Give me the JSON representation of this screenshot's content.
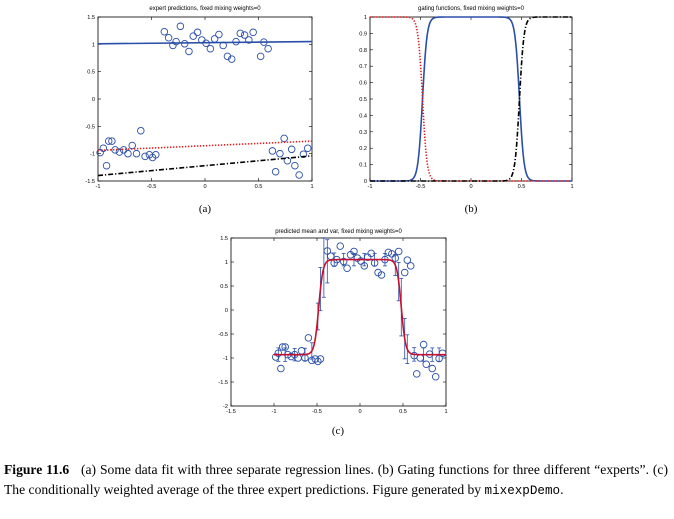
{
  "chart_data": [
    {
      "id": "a",
      "type": "scatter",
      "title": "expert predictions, fixed mixing weights=0",
      "subfigure_label": "(a)",
      "xlim": [
        -1,
        1
      ],
      "ylim": [
        -1.5,
        1.5
      ],
      "xticks": [
        -1,
        -0.5,
        0,
        0.5,
        1
      ],
      "xtick_labels": [
        "-1",
        "-0.5",
        "0",
        "0.5",
        "1"
      ],
      "yticks": [
        -1.5,
        -1,
        -0.5,
        0,
        0.5,
        1,
        1.5
      ],
      "ytick_labels": [
        "-1.5",
        "-1",
        "-0.5",
        "0",
        "0.5",
        "1",
        "1.5"
      ],
      "points": {
        "x": [
          -0.98,
          -0.95,
          -0.92,
          -0.9,
          -0.87,
          -0.84,
          -0.8,
          -0.76,
          -0.72,
          -0.68,
          -0.64,
          -0.6,
          -0.56,
          -0.52,
          -0.49,
          -0.46,
          -0.38,
          -0.34,
          -0.3,
          -0.27,
          -0.23,
          -0.19,
          -0.15,
          -0.11,
          -0.07,
          -0.03,
          0.01,
          0.05,
          0.09,
          0.13,
          0.17,
          0.21,
          0.25,
          0.29,
          0.33,
          0.37,
          0.41,
          0.45,
          0.52,
          0.55,
          0.59,
          0.63,
          0.66,
          0.7,
          0.74,
          0.77,
          0.81,
          0.84,
          0.88,
          0.92,
          0.96
        ],
        "y": [
          -0.98,
          -0.9,
          -1.22,
          -0.77,
          -0.77,
          -0.93,
          -0.97,
          -0.93,
          -1,
          -0.85,
          -1,
          -0.58,
          -1.05,
          -1.02,
          -1.07,
          -1.02,
          1.23,
          1.12,
          0.98,
          1.05,
          1.33,
          1.01,
          0.87,
          1.15,
          1.22,
          1.08,
          1.02,
          0.92,
          1.1,
          1.18,
          0.98,
          0.78,
          0.73,
          1.05,
          1.2,
          1.17,
          1.08,
          1.22,
          0.78,
          1.04,
          0.92,
          -0.95,
          -1.33,
          -1.0,
          -0.72,
          -1.13,
          -0.92,
          -1.22,
          -1.39,
          -1.01,
          -0.9
        ]
      },
      "lines": [
        {
          "style": "solid",
          "color": "#2a4fa8",
          "x": [
            -1,
            1
          ],
          "y": [
            1.01,
            1.05
          ]
        },
        {
          "style": "dotted",
          "color": "#e02020",
          "x": [
            -1,
            1
          ],
          "y": [
            -0.94,
            -0.77
          ]
        },
        {
          "style": "dashdot",
          "color": "#000000",
          "x": [
            -1,
            1
          ],
          "y": [
            -1.4,
            -1.04
          ]
        }
      ]
    },
    {
      "id": "b",
      "type": "line",
      "title": "gating functions, fixed mixing weights=0",
      "subfigure_label": "(b)",
      "xlim": [
        -1,
        1
      ],
      "ylim": [
        0,
        1
      ],
      "xticks": [
        -1,
        -0.5,
        0,
        0.5,
        1
      ],
      "xtick_labels": [
        "-1",
        "-0.5",
        "0",
        "0.5",
        "1"
      ],
      "yticks": [
        0,
        0.1,
        0.2,
        0.3,
        0.4,
        0.5,
        0.6,
        0.7,
        0.8,
        0.9,
        1
      ],
      "ytick_labels": [
        "0",
        "0.1",
        "0.2",
        "0.3",
        "0.4",
        "0.5",
        "0.6",
        "0.7",
        "0.8",
        "0.9",
        "1"
      ],
      "series": [
        {
          "style": "solid",
          "color": "#2a4fa8",
          "shape": "bump",
          "left_edge": -0.48,
          "right_edge": 0.48,
          "steepness": 45
        },
        {
          "style": "dotted",
          "color": "#e02020",
          "shape": "falling",
          "left_edge": -0.48,
          "steepness": 45
        },
        {
          "style": "dashdot",
          "color": "#000000",
          "shape": "rising",
          "right_edge": 0.48,
          "steepness": 45
        }
      ]
    },
    {
      "id": "c",
      "type": "line",
      "title": "predicted mean and var, fixed mixing weights=0",
      "subfigure_label": "(c)",
      "xlim": [
        -1.5,
        1
      ],
      "ylim": [
        -2,
        1.5
      ],
      "xticks": [
        -1.5,
        -1,
        -0.5,
        0,
        0.5,
        1
      ],
      "xtick_labels": [
        "-1.5",
        "-1",
        "-0.5",
        "0",
        "0.5",
        "1"
      ],
      "yticks": [
        -2,
        -1.5,
        -1,
        -0.5,
        0,
        0.5,
        1,
        1.5
      ],
      "ytick_labels": [
        "-2",
        "-1.5",
        "-1",
        "-0.5",
        "0",
        "0.5",
        "1",
        "1.5"
      ],
      "points": {
        "x": [
          -0.98,
          -0.95,
          -0.92,
          -0.9,
          -0.87,
          -0.84,
          -0.8,
          -0.76,
          -0.72,
          -0.68,
          -0.64,
          -0.6,
          -0.56,
          -0.52,
          -0.49,
          -0.46,
          -0.38,
          -0.34,
          -0.3,
          -0.27,
          -0.23,
          -0.19,
          -0.15,
          -0.11,
          -0.07,
          -0.03,
          0.01,
          0.05,
          0.09,
          0.13,
          0.17,
          0.21,
          0.25,
          0.29,
          0.33,
          0.37,
          0.41,
          0.45,
          0.52,
          0.55,
          0.59,
          0.63,
          0.66,
          0.7,
          0.74,
          0.77,
          0.81,
          0.84,
          0.88,
          0.92,
          0.96
        ],
        "y": [
          -0.98,
          -0.9,
          -1.22,
          -0.77,
          -0.77,
          -0.93,
          -0.97,
          -0.93,
          -1,
          -0.85,
          -1,
          -0.58,
          -1.05,
          -1.02,
          -1.07,
          -1.02,
          1.23,
          1.12,
          0.98,
          1.05,
          1.33,
          1.01,
          0.87,
          1.15,
          1.22,
          1.08,
          1.02,
          0.92,
          1.1,
          1.18,
          0.98,
          0.78,
          0.73,
          1.05,
          1.2,
          1.17,
          1.08,
          1.22,
          0.78,
          1.04,
          0.92,
          -0.95,
          -1.33,
          -1.0,
          -0.72,
          -1.13,
          -0.92,
          -1.22,
          -1.39,
          -1.01,
          -0.9
        ]
      },
      "mean_curve": {
        "color": "#c8102e",
        "low": -0.93,
        "high": 1.05,
        "left_edge": -0.48,
        "right_edge": 0.48,
        "steepness": 40
      },
      "error_bars": {
        "color": "#2a4fa8",
        "x": [
          -0.95,
          -0.87,
          -0.76,
          -0.64,
          -0.56,
          -0.49,
          -0.46,
          -0.42,
          -0.38,
          -0.3,
          -0.19,
          -0.07,
          0.05,
          0.17,
          0.29,
          0.41,
          0.45,
          0.48,
          0.52,
          0.55,
          0.63,
          0.74,
          0.84,
          0.92
        ],
        "half_width": [
          0.14,
          0.14,
          0.13,
          0.13,
          0.17,
          0.28,
          0.45,
          0.62,
          0.45,
          0.14,
          0.13,
          0.13,
          0.13,
          0.13,
          0.13,
          0.22,
          0.4,
          0.6,
          0.42,
          0.3,
          0.14,
          0.14,
          0.14,
          0.14
        ]
      }
    }
  ],
  "caption": {
    "label": "Figure 11.6",
    "text_line1": "(a) Some data fit with three separate regression lines. (b) Gating functions for three different",
    "text_line2": "“experts”.  (c) The conditionally weighted average of the three expert predictions.  Figure generated by",
    "code": "mixexpDemo",
    "tail": "."
  }
}
